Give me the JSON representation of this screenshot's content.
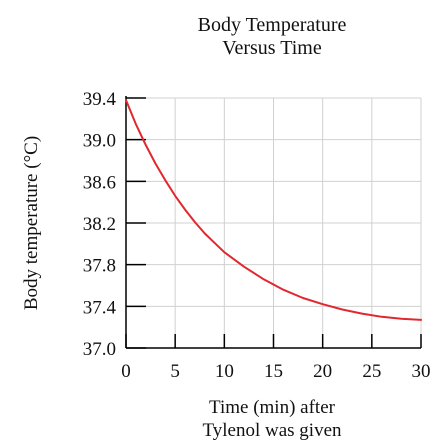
{
  "chart_data": {
    "type": "line",
    "title_lines": [
      "Body Temperature",
      "Versus Time"
    ],
    "xlabel_lines": [
      "Time (min) after",
      "Tylenol was given"
    ],
    "ylabel": "Body temperature (°C)",
    "xlim": [
      0,
      30
    ],
    "ylim": [
      37.0,
      39.4
    ],
    "x_ticks": [
      0,
      5,
      10,
      15,
      20,
      25,
      30
    ],
    "y_ticks": [
      37.0,
      37.4,
      37.8,
      38.2,
      38.6,
      39.0,
      39.4
    ],
    "y_tick_labels": [
      "37.0",
      "37.4",
      "37.8",
      "38.2",
      "38.6",
      "39.0",
      "39.4"
    ],
    "grid": true,
    "series": [
      {
        "color": "#e0282e",
        "x": [
          0,
          1,
          2,
          3,
          4,
          5,
          6,
          7,
          8,
          9,
          10,
          12,
          14,
          16,
          18,
          20,
          22,
          24,
          26,
          28,
          30
        ],
        "y": [
          39.38,
          39.15,
          38.95,
          38.77,
          38.61,
          38.46,
          38.33,
          38.21,
          38.1,
          38.01,
          37.92,
          37.78,
          37.66,
          37.56,
          37.48,
          37.42,
          37.37,
          37.33,
          37.3,
          37.28,
          37.27
        ]
      }
    ]
  }
}
